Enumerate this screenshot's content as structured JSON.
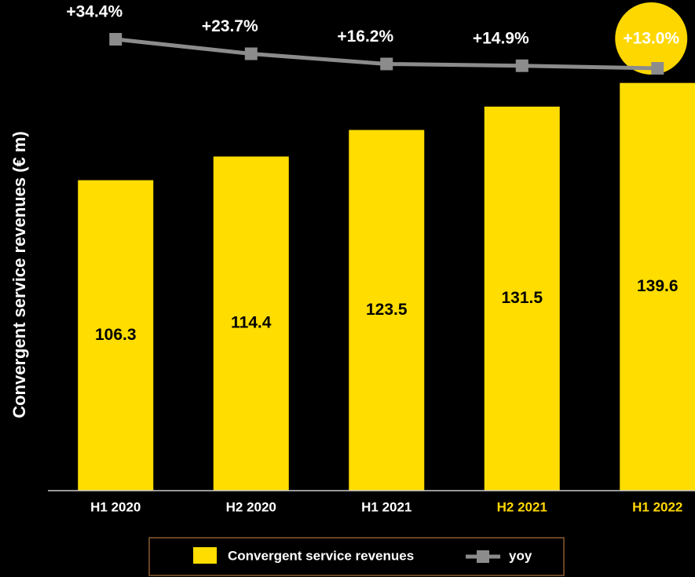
{
  "chart_data": {
    "type": "bar",
    "y_axis_label": "Convergent service revenues (€ m)",
    "categories": [
      "H1 2020",
      "H2 2020",
      "H1 2021",
      "H2 2021",
      "H1 2022"
    ],
    "category_label_colors": [
      "#ffffff",
      "#ffffff",
      "#ffffff",
      "#ffd700",
      "#ffd700"
    ],
    "series": [
      {
        "name": "Convergent service revenues",
        "type": "bar",
        "color": "#ffdd00",
        "values": [
          106.3,
          114.4,
          123.5,
          131.5,
          139.6
        ]
      },
      {
        "name": "yoy",
        "type": "line",
        "axis": "y2",
        "color": "#8c8c8c",
        "values": [
          34.4,
          23.7,
          16.2,
          14.9,
          13.0
        ],
        "value_labels": [
          "+34.4%",
          "+23.7%",
          "+16.2%",
          "+14.9%",
          "+13.0%"
        ],
        "highlight_index": 4,
        "highlight_color": "#ffd700"
      }
    ],
    "ylim": [
      0,
      168
    ],
    "y2lim": [
      -298,
      63.3
    ]
  }
}
